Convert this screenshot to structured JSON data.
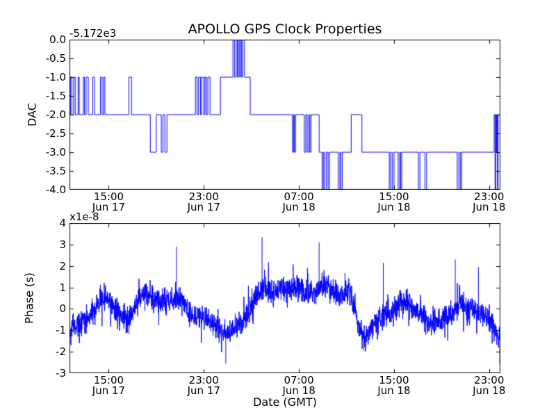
{
  "title": "APOLLO GPS Clock Properties",
  "xlabel": "Date (GMT)",
  "colors": {
    "line": "#0000ff",
    "frame": "#000000",
    "background": "#ffffff"
  },
  "chart_data": [
    {
      "type": "line",
      "subtype": "step",
      "title": "APOLLO GPS Clock Properties",
      "ylabel": "DAC",
      "offset_label": "-5.172e3",
      "grid": false,
      "legend": "none",
      "x_unit": "hours from Jun 17 00:00 GMT",
      "xlim": [
        11.7,
        47.95
      ],
      "ylim": [
        -4.0,
        0.0
      ],
      "yticks": [
        {
          "v": 0.0,
          "label": "0.0"
        },
        {
          "v": -0.5,
          "label": "-0.5"
        },
        {
          "v": -1.0,
          "label": "-1.0"
        },
        {
          "v": -1.5,
          "label": "-1.5"
        },
        {
          "v": -2.0,
          "label": "-2.0"
        },
        {
          "v": -2.5,
          "label": "-2.5"
        },
        {
          "v": -3.0,
          "label": "-3.0"
        },
        {
          "v": -3.5,
          "label": "-3.5"
        },
        {
          "v": -4.0,
          "label": "-4.0"
        }
      ],
      "xticks": [
        {
          "t": 15,
          "time": "15:00",
          "date": "Jun 17"
        },
        {
          "t": 23,
          "time": "23:00",
          "date": "Jun 17"
        },
        {
          "t": 31,
          "time": "07:00",
          "date": "Jun 18"
        },
        {
          "t": 39,
          "time": "15:00",
          "date": "Jun 18"
        },
        {
          "t": 47,
          "time": "23:00",
          "date": "Jun 18"
        }
      ],
      "steps": [
        [
          11.7,
          -2
        ],
        [
          11.78,
          -1
        ],
        [
          11.9,
          -2
        ],
        [
          12.05,
          -1
        ],
        [
          12.18,
          -2
        ],
        [
          12.42,
          -1
        ],
        [
          12.52,
          -2
        ],
        [
          12.86,
          -1
        ],
        [
          12.96,
          -2
        ],
        [
          13.1,
          -1
        ],
        [
          13.28,
          -2
        ],
        [
          13.65,
          -1
        ],
        [
          13.8,
          -2
        ],
        [
          14.3,
          -1
        ],
        [
          14.44,
          -2
        ],
        [
          14.56,
          -1
        ],
        [
          14.68,
          -2
        ],
        [
          16.7,
          -1
        ],
        [
          16.92,
          -2
        ],
        [
          18.5,
          -3
        ],
        [
          19.0,
          -2
        ],
        [
          19.42,
          -3
        ],
        [
          19.56,
          -2
        ],
        [
          19.72,
          -3
        ],
        [
          19.9,
          -2
        ],
        [
          22.3,
          -1
        ],
        [
          22.44,
          -2
        ],
        [
          22.56,
          -1
        ],
        [
          22.72,
          -2
        ],
        [
          22.82,
          -1
        ],
        [
          23.0,
          -2
        ],
        [
          23.1,
          -1
        ],
        [
          23.22,
          -2
        ],
        [
          23.34,
          -1
        ],
        [
          23.52,
          -2
        ],
        [
          24.4,
          -1
        ],
        [
          25.45,
          0
        ],
        [
          25.58,
          -1
        ],
        [
          25.72,
          0
        ],
        [
          25.82,
          -1
        ],
        [
          25.92,
          0
        ],
        [
          26.02,
          -1
        ],
        [
          26.08,
          0
        ],
        [
          26.18,
          -1
        ],
        [
          26.28,
          0
        ],
        [
          26.42,
          -1
        ],
        [
          26.9,
          -2
        ],
        [
          30.45,
          -3
        ],
        [
          30.55,
          -2
        ],
        [
          30.62,
          -3
        ],
        [
          30.72,
          -2
        ],
        [
          31.45,
          -3
        ],
        [
          31.58,
          -2
        ],
        [
          31.7,
          -3
        ],
        [
          31.84,
          -2
        ],
        [
          31.92,
          -3
        ],
        [
          32.02,
          -2
        ],
        [
          32.7,
          -3
        ],
        [
          32.95,
          -4
        ],
        [
          33.05,
          -3
        ],
        [
          33.15,
          -4
        ],
        [
          33.3,
          -3
        ],
        [
          33.45,
          -4
        ],
        [
          33.56,
          -3
        ],
        [
          34.3,
          -4
        ],
        [
          34.44,
          -3
        ],
        [
          34.54,
          -4
        ],
        [
          34.66,
          -3
        ],
        [
          35.4,
          -2
        ],
        [
          36.3,
          -3
        ],
        [
          38.6,
          -4
        ],
        [
          38.72,
          -3
        ],
        [
          38.85,
          -4
        ],
        [
          39.0,
          -3
        ],
        [
          39.35,
          -4
        ],
        [
          39.48,
          -3
        ],
        [
          39.55,
          -4
        ],
        [
          39.65,
          -3
        ],
        [
          41.05,
          -4
        ],
        [
          41.18,
          -3
        ],
        [
          41.6,
          -4
        ],
        [
          41.74,
          -3
        ],
        [
          44.32,
          -4
        ],
        [
          44.46,
          -3
        ],
        [
          44.58,
          -4
        ],
        [
          44.7,
          -3
        ],
        [
          47.42,
          -2
        ],
        [
          47.5,
          -4
        ],
        [
          47.56,
          -2
        ],
        [
          47.62,
          -3
        ],
        [
          47.66,
          -2
        ],
        [
          47.7,
          -4
        ],
        [
          47.76,
          -2
        ]
      ]
    },
    {
      "type": "line",
      "subtype": "noisy",
      "ylabel": "Phase (s)",
      "offset_label": "x1e-8",
      "grid": false,
      "legend": "none",
      "x_unit": "hours from Jun 17 00:00 GMT",
      "y_unit": "1e-8 s",
      "xlim": [
        11.7,
        47.95
      ],
      "ylim": [
        -3,
        4
      ],
      "yticks": [
        {
          "v": 4,
          "label": "4"
        },
        {
          "v": 3,
          "label": "3"
        },
        {
          "v": 2,
          "label": "2"
        },
        {
          "v": 1,
          "label": "1"
        },
        {
          "v": 0,
          "label": "0"
        },
        {
          "v": -1,
          "label": "-1"
        },
        {
          "v": -2,
          "label": "-2"
        },
        {
          "v": -3,
          "label": "-3"
        }
      ],
      "xticks": [
        {
          "t": 15,
          "time": "15:00",
          "date": "Jun 17"
        },
        {
          "t": 23,
          "time": "23:00",
          "date": "Jun 17"
        },
        {
          "t": 31,
          "time": "07:00",
          "date": "Jun 18"
        },
        {
          "t": 39,
          "time": "15:00",
          "date": "Jun 18"
        },
        {
          "t": 47,
          "time": "23:00",
          "date": "Jun 18"
        }
      ],
      "trend": [
        [
          11.7,
          -0.85
        ],
        [
          12.3,
          -0.75
        ],
        [
          12.8,
          -0.55
        ],
        [
          13.4,
          -0.35
        ],
        [
          14.0,
          0.1
        ],
        [
          14.6,
          0.55
        ],
        [
          15.0,
          0.35
        ],
        [
          15.6,
          -0.05
        ],
        [
          16.2,
          -0.35
        ],
        [
          16.7,
          -0.5
        ],
        [
          17.2,
          0.15
        ],
        [
          17.7,
          0.65
        ],
        [
          18.2,
          0.8
        ],
        [
          18.7,
          0.5
        ],
        [
          19.2,
          0.35
        ],
        [
          19.8,
          0.3
        ],
        [
          20.4,
          0.45
        ],
        [
          21.0,
          0.5
        ],
        [
          21.4,
          0.15
        ],
        [
          21.9,
          -0.3
        ],
        [
          22.4,
          -0.4
        ],
        [
          22.9,
          -0.35
        ],
        [
          23.4,
          -0.55
        ],
        [
          23.9,
          -0.75
        ],
        [
          24.4,
          -1.05
        ],
        [
          24.9,
          -1.25
        ],
        [
          25.4,
          -1.0
        ],
        [
          25.9,
          -0.75
        ],
        [
          26.4,
          -0.45
        ],
        [
          26.9,
          -0.1
        ],
        [
          27.4,
          0.55
        ],
        [
          27.9,
          0.95
        ],
        [
          28.4,
          0.85
        ],
        [
          28.9,
          0.8
        ],
        [
          29.4,
          0.85
        ],
        [
          29.9,
          0.9
        ],
        [
          30.4,
          0.95
        ],
        [
          30.9,
          1.0
        ],
        [
          31.4,
          0.85
        ],
        [
          31.9,
          0.7
        ],
        [
          32.4,
          0.85
        ],
        [
          32.9,
          1.1
        ],
        [
          33.3,
          1.25
        ],
        [
          33.7,
          0.9
        ],
        [
          34.1,
          0.65
        ],
        [
          34.5,
          0.7
        ],
        [
          34.9,
          0.85
        ],
        [
          35.3,
          0.7
        ],
        [
          35.6,
          0.3
        ],
        [
          35.9,
          -0.5
        ],
        [
          36.2,
          -1.1
        ],
        [
          36.6,
          -1.25
        ],
        [
          37.0,
          -0.85
        ],
        [
          37.4,
          -0.6
        ],
        [
          37.8,
          -0.4
        ],
        [
          38.2,
          -0.2
        ],
        [
          38.6,
          -0.35
        ],
        [
          39.0,
          0.0
        ],
        [
          39.4,
          0.3
        ],
        [
          39.8,
          0.45
        ],
        [
          40.2,
          0.3
        ],
        [
          40.6,
          0.1
        ],
        [
          41.0,
          -0.15
        ],
        [
          41.4,
          -0.4
        ],
        [
          41.8,
          -0.55
        ],
        [
          42.2,
          -0.65
        ],
        [
          42.6,
          -0.6
        ],
        [
          43.0,
          -0.45
        ],
        [
          43.4,
          -0.35
        ],
        [
          43.8,
          -0.25
        ],
        [
          44.2,
          0.0
        ],
        [
          44.6,
          0.3
        ],
        [
          45.0,
          0.1
        ],
        [
          45.4,
          -0.05
        ],
        [
          45.8,
          -0.15
        ],
        [
          46.2,
          -0.2
        ],
        [
          46.6,
          -0.3
        ],
        [
          47.0,
          -0.4
        ],
        [
          47.4,
          -0.8
        ],
        [
          47.7,
          -1.2
        ],
        [
          47.95,
          -1.1
        ]
      ],
      "spikes": [
        [
          20.7,
          2.9
        ],
        [
          24.85,
          -2.55
        ],
        [
          27.9,
          3.35
        ],
        [
          32.7,
          3.1
        ],
        [
          36.45,
          -1.95
        ],
        [
          38.1,
          2.15
        ],
        [
          44.15,
          2.3
        ],
        [
          46.1,
          1.95
        ],
        [
          47.9,
          -2.6
        ]
      ],
      "noise": 0.55,
      "seed": 42,
      "points": 2400
    }
  ]
}
